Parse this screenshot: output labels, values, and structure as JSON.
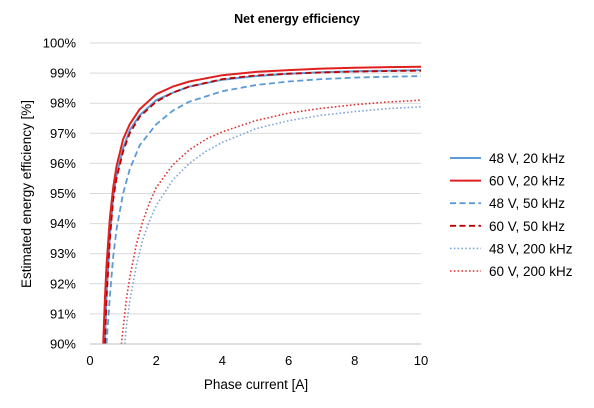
{
  "chart_data": {
    "type": "line",
    "title": "Net energy efficiency",
    "xlabel": "Phase current [A]",
    "ylabel": "Estimated energy efficiency [%]",
    "xlim": [
      0,
      10
    ],
    "ylim": [
      90,
      100
    ],
    "x_ticks": [
      0,
      2,
      4,
      6,
      8,
      10
    ],
    "x_tick_labels": [
      "0",
      "2",
      "4",
      "6",
      "8",
      "10"
    ],
    "y_ticks": [
      90,
      91,
      92,
      93,
      94,
      95,
      96,
      97,
      98,
      99,
      100
    ],
    "y_tick_labels": [
      "90%",
      "91%",
      "92%",
      "93%",
      "94%",
      "95%",
      "96%",
      "97%",
      "98%",
      "99%",
      "100%"
    ],
    "grid": "horizontal",
    "legend_position": "right",
    "series": [
      {
        "name": "48 V, 20 kHz",
        "color": "#5b9bd5",
        "dash": "solid",
        "points": [
          [
            0.45,
            90
          ],
          [
            0.5,
            91.6
          ],
          [
            0.6,
            93.6
          ],
          [
            0.7,
            94.9
          ],
          [
            0.8,
            95.6
          ],
          [
            1,
            96.5
          ],
          [
            1.2,
            97.1
          ],
          [
            1.5,
            97.6
          ],
          [
            2,
            98.1
          ],
          [
            2.5,
            98.35
          ],
          [
            3,
            98.55
          ],
          [
            4,
            98.78
          ],
          [
            5,
            98.9
          ],
          [
            6,
            98.98
          ],
          [
            7,
            99.03
          ],
          [
            8,
            99.06
          ],
          [
            9,
            99.08
          ],
          [
            10,
            99.1
          ]
        ]
      },
      {
        "name": "60 V, 20 kHz",
        "color": "#e02020",
        "dash": "solid",
        "points": [
          [
            0.4,
            90
          ],
          [
            0.45,
            91.5
          ],
          [
            0.5,
            92.6
          ],
          [
            0.6,
            94.2
          ],
          [
            0.7,
            95.2
          ],
          [
            0.8,
            95.9
          ],
          [
            1,
            96.8
          ],
          [
            1.2,
            97.3
          ],
          [
            1.5,
            97.8
          ],
          [
            2,
            98.3
          ],
          [
            2.5,
            98.55
          ],
          [
            3,
            98.72
          ],
          [
            4,
            98.93
          ],
          [
            5,
            99.04
          ],
          [
            6,
            99.1
          ],
          [
            7,
            99.15
          ],
          [
            8,
            99.18
          ],
          [
            9,
            99.2
          ],
          [
            10,
            99.21
          ]
        ]
      },
      {
        "name": "48 V, 50 kHz",
        "color": "#5b9bd5",
        "dash": "dashed",
        "points": [
          [
            0.5,
            90
          ],
          [
            0.55,
            90.8
          ],
          [
            0.6,
            91.6
          ],
          [
            0.7,
            92.9
          ],
          [
            0.8,
            93.8
          ],
          [
            1,
            95.0
          ],
          [
            1.2,
            95.8
          ],
          [
            1.5,
            96.6
          ],
          [
            2,
            97.3
          ],
          [
            2.5,
            97.75
          ],
          [
            3,
            98.05
          ],
          [
            4,
            98.4
          ],
          [
            5,
            98.6
          ],
          [
            6,
            98.72
          ],
          [
            7,
            98.8
          ],
          [
            8,
            98.85
          ],
          [
            9,
            98.88
          ],
          [
            10,
            98.9
          ]
        ]
      },
      {
        "name": "60 V, 50 kHz",
        "color": "#c00000",
        "dash": "dashed",
        "points": [
          [
            0.45,
            90
          ],
          [
            0.5,
            91.5
          ],
          [
            0.6,
            93.5
          ],
          [
            0.7,
            94.8
          ],
          [
            0.8,
            95.5
          ],
          [
            1,
            96.4
          ],
          [
            1.2,
            97.0
          ],
          [
            1.5,
            97.55
          ],
          [
            2,
            98.05
          ],
          [
            2.5,
            98.35
          ],
          [
            3,
            98.55
          ],
          [
            4,
            98.8
          ],
          [
            5,
            98.92
          ],
          [
            6,
            98.98
          ],
          [
            7,
            99.02
          ],
          [
            8,
            99.05
          ],
          [
            9,
            99.07
          ],
          [
            10,
            99.08
          ]
        ]
      },
      {
        "name": "48 V, 200 kHz",
        "color": "#7ea6d6",
        "dash": "dotted",
        "points": [
          [
            1.05,
            90
          ],
          [
            1.1,
            90.6
          ],
          [
            1.2,
            91.4
          ],
          [
            1.4,
            92.6
          ],
          [
            1.6,
            93.5
          ],
          [
            1.8,
            94.1
          ],
          [
            2,
            94.6
          ],
          [
            2.5,
            95.45
          ],
          [
            3,
            96.0
          ],
          [
            3.5,
            96.4
          ],
          [
            4,
            96.7
          ],
          [
            5,
            97.15
          ],
          [
            6,
            97.42
          ],
          [
            7,
            97.6
          ],
          [
            8,
            97.72
          ],
          [
            9,
            97.82
          ],
          [
            10,
            97.88
          ]
        ]
      },
      {
        "name": "60 V, 200 kHz",
        "color": "#e03030",
        "dash": "dotted",
        "points": [
          [
            0.95,
            90
          ],
          [
            1.0,
            90.5
          ],
          [
            1.1,
            91.5
          ],
          [
            1.2,
            92.2
          ],
          [
            1.4,
            93.3
          ],
          [
            1.6,
            94.1
          ],
          [
            1.8,
            94.7
          ],
          [
            2,
            95.2
          ],
          [
            2.5,
            95.95
          ],
          [
            3,
            96.45
          ],
          [
            3.5,
            96.8
          ],
          [
            4,
            97.05
          ],
          [
            5,
            97.42
          ],
          [
            6,
            97.67
          ],
          [
            7,
            97.83
          ],
          [
            8,
            97.95
          ],
          [
            9,
            98.04
          ],
          [
            10,
            98.1
          ]
        ]
      }
    ]
  }
}
